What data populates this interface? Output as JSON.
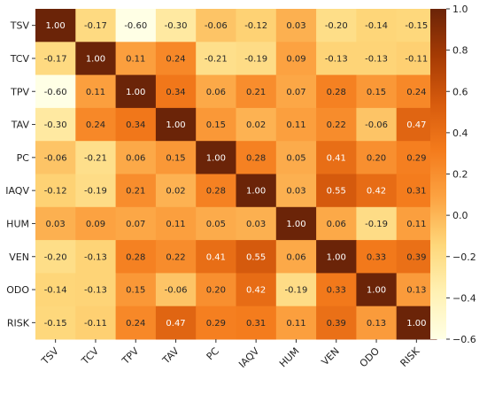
{
  "chart_data": {
    "type": "heatmap",
    "title": "",
    "rows": [
      "TSV",
      "TCV",
      "TPV",
      "TAV",
      "PC",
      "IAQV",
      "HUM",
      "VEN",
      "ODO",
      "RISK"
    ],
    "columns": [
      "TSV",
      "TCV",
      "TPV",
      "TAV",
      "PC",
      "IAQV",
      "HUM",
      "VEN",
      "ODO",
      "RISK"
    ],
    "values": [
      [
        1.0,
        -0.17,
        -0.6,
        -0.3,
        -0.06,
        -0.12,
        0.03,
        -0.2,
        -0.14,
        -0.15
      ],
      [
        -0.17,
        1.0,
        0.11,
        0.24,
        -0.21,
        -0.19,
        0.09,
        -0.13,
        -0.13,
        -0.11
      ],
      [
        -0.6,
        0.11,
        1.0,
        0.34,
        0.06,
        0.21,
        0.07,
        0.28,
        0.15,
        0.24
      ],
      [
        -0.3,
        0.24,
        0.34,
        1.0,
        0.15,
        0.02,
        0.11,
        0.22,
        -0.06,
        0.47
      ],
      [
        -0.06,
        -0.21,
        0.06,
        0.15,
        1.0,
        0.28,
        0.05,
        0.41,
        0.2,
        0.29
      ],
      [
        -0.12,
        -0.19,
        0.21,
        0.02,
        0.28,
        1.0,
        0.03,
        0.55,
        0.42,
        0.31
      ],
      [
        0.03,
        0.09,
        0.07,
        0.11,
        0.05,
        0.03,
        1.0,
        0.06,
        -0.19,
        0.11
      ],
      [
        -0.2,
        -0.13,
        0.28,
        0.22,
        0.41,
        0.55,
        0.06,
        1.0,
        0.33,
        0.39
      ],
      [
        -0.14,
        -0.13,
        0.15,
        -0.06,
        0.2,
        0.42,
        -0.19,
        0.33,
        1.0,
        0.13
      ],
      [
        -0.15,
        -0.11,
        0.24,
        0.47,
        0.29,
        0.31,
        0.11,
        0.39,
        0.13,
        1.0
      ]
    ],
    "value_format": "2 decimals",
    "colormap": "YlOrBr-like",
    "color_range": [
      -0.6,
      1.0
    ],
    "colorbar_ticks": [
      "1.0",
      "0.8",
      "0.6",
      "0.4",
      "0.2",
      "0.0",
      "−0.2",
      "−0.4",
      "−0.6"
    ],
    "colors": [
      "#ffffe5",
      "#fff1b3",
      "#fed77a",
      "#fca342",
      "#f47b1c",
      "#d75b0d",
      "#a63b04",
      "#6b2408"
    ]
  }
}
